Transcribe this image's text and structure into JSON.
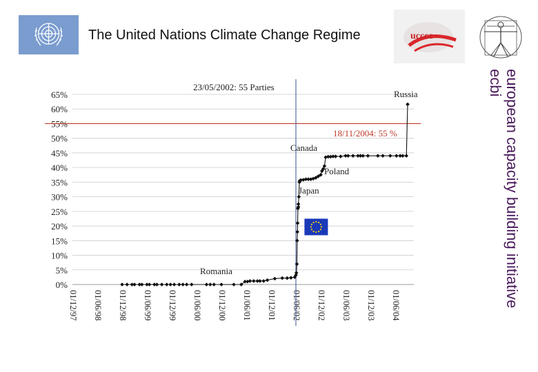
{
  "header": {
    "title": "The United Nations Climate Change Regime"
  },
  "side_text": {
    "line1": "european capacity building initiative",
    "line2": "ecbi"
  },
  "logos": {
    "un_logo": "un-emblem",
    "unfccc_logo": "unfccc",
    "ecbi_logo": "vitruvian-man"
  },
  "colors": {
    "threshold_line": "#c0392b",
    "vertical_line": "#5a6aa0",
    "series": "#111111",
    "grid": "#cccccc",
    "un_blue": "#7a9ccf",
    "eu_flag": "#1a39b8"
  },
  "chart_data": {
    "type": "line",
    "x_tick_labels": [
      "01/12/97",
      "01/06/98",
      "01/12/98",
      "01/06/99",
      "01/12/99",
      "01/06/00",
      "01/12/00",
      "01/06/01",
      "01/12/01",
      "01/06/02",
      "01/12/02",
      "01/06/03",
      "01/12/03",
      "01/06/04"
    ],
    "y_tick_labels": [
      "0%",
      "5%",
      "10%",
      "15%",
      "20%",
      "25%",
      "30%",
      "35%",
      "40%",
      "45%",
      "50%",
      "55%",
      "60%",
      "65%"
    ],
    "ylim": [
      0,
      65
    ],
    "grid": true,
    "series": [
      {
        "x": [
          2.0,
          2.2,
          2.4,
          2.5,
          2.7,
          2.8,
          3.0,
          3.1,
          3.3,
          3.4,
          3.6,
          3.8,
          3.95,
          4.1,
          4.3,
          4.45,
          4.6,
          4.8,
          5.4,
          5.55,
          5.7,
          6.0,
          6.5,
          6.8,
          6.95,
          7.05,
          7.15,
          7.3,
          7.45,
          7.55,
          7.7,
          7.85,
          8.15,
          8.45,
          8.65,
          8.8,
          8.95,
          9.0,
          9.02,
          9.04,
          9.05,
          9.06,
          9.07,
          9.08,
          9.1,
          9.1,
          9.12,
          9.14,
          9.16,
          9.2,
          9.3,
          9.4,
          9.5,
          9.6,
          9.7,
          9.8,
          9.9,
          10.0,
          10.05,
          10.1,
          10.15,
          10.2,
          10.3,
          10.4,
          10.5,
          10.6,
          10.8,
          11.0,
          11.1,
          11.3,
          11.5,
          11.6,
          11.7,
          11.9,
          12.3,
          12.5,
          12.8,
          13.05,
          13.2,
          13.3,
          13.45,
          13.5
        ],
        "y": [
          0,
          0,
          0,
          0,
          0,
          0,
          0,
          0,
          0,
          0,
          0,
          0,
          0,
          0,
          0,
          0,
          0,
          0,
          0,
          0,
          0,
          0,
          0,
          0,
          1,
          1,
          1.2,
          1.2,
          1.2,
          1.2,
          1.2,
          1.5,
          2,
          2.2,
          2.2,
          2.3,
          2.5,
          3.2,
          4,
          7,
          15,
          18,
          21,
          26,
          26.5,
          27.5,
          30,
          35,
          35.5,
          35.7,
          35.8,
          36,
          36,
          36,
          36.2,
          36.5,
          37,
          37.5,
          38.8,
          39.5,
          40.5,
          43.5,
          43.7,
          43.7,
          43.8,
          43.8,
          43.8,
          44,
          44,
          44,
          44,
          44,
          44,
          44,
          44,
          44,
          44,
          44,
          44,
          44,
          44,
          61.6
        ]
      }
    ],
    "annotations": {
      "entry_threshold": "23/05/2002: 55 Parties",
      "emissions_threshold": "18/11/2004: 55 %",
      "russia": "Russia",
      "canada": "Canada",
      "poland": "Poland",
      "japan": "Japan",
      "romania": "Romania"
    },
    "threshold_value": 55,
    "vertical_marker_x": 9.0,
    "eu_flag_x": 9.4
  }
}
